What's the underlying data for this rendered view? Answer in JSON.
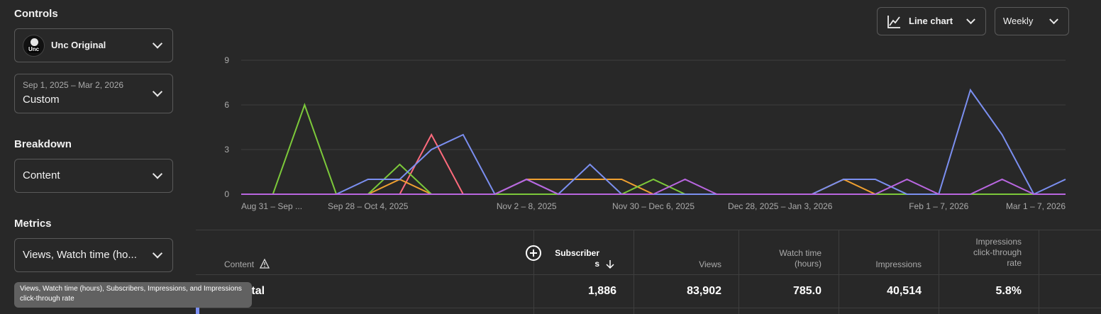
{
  "controls": {
    "title": "Controls",
    "channel_name": "Unc Original",
    "channel_avatar_text": "Unc",
    "date_range": "Sep 1, 2025 – Mar 2, 2026",
    "date_preset": "Custom"
  },
  "breakdown": {
    "title": "Breakdown",
    "value": "Content"
  },
  "metrics": {
    "title": "Metrics",
    "value": "Views, Watch time (ho...",
    "tooltip": "Views, Watch time (hours), Subscribers, Impressions, and Impressions click-through rate"
  },
  "chart_controls": {
    "chart_type": "Line chart",
    "interval": "Weekly"
  },
  "chart_data": {
    "type": "line",
    "ylim": [
      0,
      9
    ],
    "yticks": [
      0,
      3,
      6,
      9
    ],
    "x_tick_labels": [
      {
        "index": 0,
        "label": "Aug 31 – Sep ..."
      },
      {
        "index": 4,
        "label": "Sep 28 – Oct 4, 2025"
      },
      {
        "index": 9,
        "label": "Nov 2 – 8, 2025"
      },
      {
        "index": 13,
        "label": "Nov 30 – Dec 6, 2025"
      },
      {
        "index": 17,
        "label": "Dec 28, 2025 – Jan 3, 2026"
      },
      {
        "index": 22,
        "label": "Feb 1 – 7, 2026"
      },
      {
        "index": 26,
        "label": "Mar 1 – 7, 2026"
      }
    ],
    "num_points": 27,
    "series": [
      {
        "color": "#ff6b7d",
        "values": [
          0,
          0,
          0,
          0,
          0,
          0,
          4,
          0,
          0,
          0,
          0,
          0,
          0,
          0,
          0,
          0,
          0,
          0,
          0,
          0,
          0,
          0,
          0,
          0,
          0,
          0,
          0
        ]
      },
      {
        "color": "#f0a030",
        "values": [
          0,
          0,
          0,
          0,
          0,
          1,
          0,
          0,
          0,
          1,
          1,
          1,
          1,
          0,
          0,
          0,
          0,
          0,
          0,
          1,
          0,
          0,
          0,
          0,
          0,
          0,
          0
        ]
      },
      {
        "color": "#7cc93a",
        "values": [
          0,
          0,
          6,
          0,
          0,
          2,
          0,
          0,
          0,
          0,
          0,
          0,
          0,
          1,
          0,
          0,
          0,
          0,
          0,
          0,
          0,
          0,
          0,
          0,
          0,
          0,
          0
        ]
      },
      {
        "color": "#7b8ff0",
        "values": [
          0,
          0,
          0,
          0,
          1,
          1,
          3,
          4,
          0,
          1,
          0,
          2,
          0,
          0,
          0,
          0,
          0,
          0,
          0,
          1,
          1,
          0,
          0,
          7,
          4,
          0,
          1
        ]
      },
      {
        "color": "#b966e0",
        "values": [
          0,
          0,
          0,
          0,
          0,
          0,
          0,
          0,
          0,
          1,
          0,
          0,
          0,
          0,
          1,
          0,
          0,
          0,
          0,
          0,
          0,
          1,
          0,
          0,
          1,
          0,
          0
        ]
      }
    ]
  },
  "table": {
    "columns": {
      "content": "Content",
      "subscribers_1": "Subscriber",
      "subscribers_2": "s",
      "views": "Views",
      "watch_time_1": "Watch time",
      "watch_time_2": "(hours)",
      "impressions": "Impressions",
      "ctr_1": "Impressions",
      "ctr_2": "click-through",
      "ctr_3": "rate"
    },
    "total": {
      "label": "Total",
      "subscribers": "1,886",
      "views": "83,902",
      "watch_time": "785.0",
      "impressions": "40,514",
      "ctr": "5.8%"
    }
  }
}
